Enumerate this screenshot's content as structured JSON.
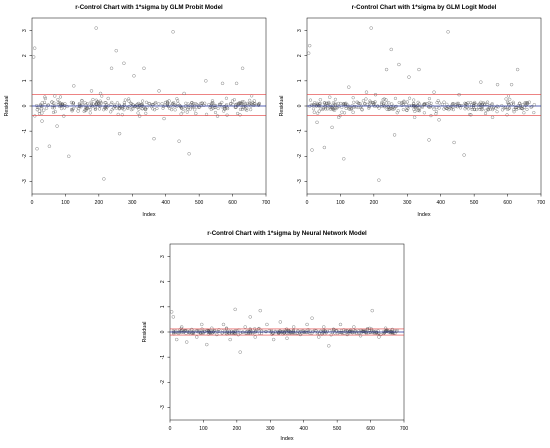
{
  "chart_data": [
    {
      "type": "scatter",
      "title": "r-Control Chart with 1*sigma by GLM Probit Model",
      "xlabel": "Index",
      "ylabel": "Residual",
      "xlim": [
        0,
        700
      ],
      "ylim": [
        -3.5,
        3.5
      ],
      "xticks": [
        "0",
        "100",
        "200",
        "300",
        "400",
        "500",
        "600",
        "700"
      ],
      "yticks": [
        "-3",
        "-2",
        "-1",
        "0",
        "1",
        "2",
        "3"
      ],
      "center_line": 0,
      "control_limits": [
        0.45,
        -0.38
      ],
      "points": [
        [
          5,
          1.95
        ],
        [
          8,
          2.3
        ],
        [
          15,
          -1.7
        ],
        [
          22,
          -0.2
        ],
        [
          30,
          -0.6
        ],
        [
          40,
          0.3
        ],
        [
          52,
          -1.6
        ],
        [
          60,
          0.15
        ],
        [
          68,
          0.4
        ],
        [
          75,
          -0.8
        ],
        [
          85,
          0.1
        ],
        [
          95,
          -0.4
        ],
        [
          110,
          -2.0
        ],
        [
          125,
          0.8
        ],
        [
          138,
          -0.2
        ],
        [
          150,
          0.2
        ],
        [
          165,
          -0.1
        ],
        [
          178,
          0.6
        ],
        [
          192,
          3.1
        ],
        [
          205,
          0.5
        ],
        [
          215,
          -2.9
        ],
        [
          228,
          0.3
        ],
        [
          238,
          1.5
        ],
        [
          252,
          2.2
        ],
        [
          262,
          -1.1
        ],
        [
          275,
          1.7
        ],
        [
          290,
          0.2
        ],
        [
          305,
          1.2
        ],
        [
          322,
          -0.4
        ],
        [
          335,
          1.5
        ],
        [
          350,
          0.1
        ],
        [
          365,
          -1.3
        ],
        [
          380,
          0.6
        ],
        [
          395,
          -0.5
        ],
        [
          410,
          0.2
        ],
        [
          422,
          2.95
        ],
        [
          440,
          -1.4
        ],
        [
          455,
          0.5
        ],
        [
          470,
          -1.9
        ],
        [
          490,
          -0.3
        ],
        [
          505,
          0.1
        ],
        [
          520,
          1.0
        ],
        [
          540,
          0.2
        ],
        [
          555,
          -0.4
        ],
        [
          570,
          0.9
        ],
        [
          585,
          -0.1
        ],
        [
          600,
          0.2
        ],
        [
          612,
          0.9
        ],
        [
          630,
          1.5
        ],
        [
          645,
          0.1
        ],
        [
          665,
          0.2
        ],
        [
          680,
          0.1
        ]
      ],
      "dense_band": [
        -0.15,
        0.15
      ]
    },
    {
      "type": "scatter",
      "title": "r-Control Chart with 1*sigma by GLM Logit Model",
      "xlabel": "Index",
      "ylabel": "Residual",
      "xlim": [
        0,
        700
      ],
      "ylim": [
        -3.5,
        3.5
      ],
      "xticks": [
        "0",
        "100",
        "200",
        "300",
        "400",
        "500",
        "600",
        "700"
      ],
      "yticks": [
        "-3",
        "-2",
        "-1",
        "0",
        "1",
        "2",
        "3"
      ],
      "center_line": 0,
      "control_limits": [
        0.45,
        -0.38
      ],
      "points": [
        [
          5,
          2.1
        ],
        [
          8,
          2.4
        ],
        [
          15,
          -1.75
        ],
        [
          22,
          -0.25
        ],
        [
          30,
          -0.65
        ],
        [
          40,
          0.25
        ],
        [
          52,
          -1.65
        ],
        [
          60,
          0.1
        ],
        [
          68,
          0.35
        ],
        [
          75,
          -0.85
        ],
        [
          85,
          0.05
        ],
        [
          95,
          -0.45
        ],
        [
          110,
          -2.1
        ],
        [
          125,
          0.75
        ],
        [
          138,
          -0.25
        ],
        [
          150,
          0.15
        ],
        [
          165,
          -0.15
        ],
        [
          178,
          0.55
        ],
        [
          192,
          3.1
        ],
        [
          205,
          0.45
        ],
        [
          215,
          -2.95
        ],
        [
          228,
          0.25
        ],
        [
          238,
          1.45
        ],
        [
          252,
          2.25
        ],
        [
          262,
          -1.15
        ],
        [
          275,
          1.65
        ],
        [
          290,
          0.15
        ],
        [
          305,
          1.15
        ],
        [
          322,
          -0.45
        ],
        [
          335,
          1.45
        ],
        [
          350,
          0.05
        ],
        [
          365,
          -1.35
        ],
        [
          380,
          0.55
        ],
        [
          395,
          -0.55
        ],
        [
          410,
          0.15
        ],
        [
          422,
          2.95
        ],
        [
          440,
          -1.45
        ],
        [
          455,
          0.45
        ],
        [
          470,
          -1.95
        ],
        [
          490,
          -0.35
        ],
        [
          505,
          0.05
        ],
        [
          520,
          0.95
        ],
        [
          540,
          0.15
        ],
        [
          555,
          -0.45
        ],
        [
          570,
          0.85
        ],
        [
          585,
          -0.15
        ],
        [
          600,
          0.15
        ],
        [
          612,
          0.85
        ],
        [
          630,
          1.45
        ],
        [
          645,
          0.05
        ],
        [
          665,
          0.15
        ],
        [
          680,
          0.05
        ]
      ],
      "dense_band": [
        -0.15,
        0.15
      ]
    },
    {
      "type": "scatter",
      "title": "r-Control Chart with 1*sigma by Neural Network Model",
      "xlabel": "Index",
      "ylabel": "Residual",
      "xlim": [
        0,
        700
      ],
      "ylim": [
        -3.5,
        3.5
      ],
      "xticks": [
        "0",
        "100",
        "200",
        "300",
        "400",
        "500",
        "600",
        "700"
      ],
      "yticks": [
        "-3",
        "-2",
        "-1",
        "0",
        "1",
        "2",
        "3"
      ],
      "center_line": 0,
      "control_limits": [
        0.12,
        -0.12
      ],
      "points": [
        [
          5,
          0.8
        ],
        [
          10,
          0.6
        ],
        [
          20,
          -0.3
        ],
        [
          35,
          0.2
        ],
        [
          50,
          -0.4
        ],
        [
          65,
          0.1
        ],
        [
          80,
          -0.2
        ],
        [
          95,
          0.3
        ],
        [
          110,
          -0.5
        ],
        [
          125,
          0.15
        ],
        [
          140,
          -0.1
        ],
        [
          160,
          0.3
        ],
        [
          180,
          -0.3
        ],
        [
          195,
          0.9
        ],
        [
          210,
          -0.8
        ],
        [
          225,
          0.2
        ],
        [
          240,
          0.6
        ],
        [
          255,
          -0.2
        ],
        [
          270,
          0.85
        ],
        [
          290,
          0.3
        ],
        [
          310,
          -0.3
        ],
        [
          330,
          0.4
        ],
        [
          350,
          -0.25
        ],
        [
          370,
          0.2
        ],
        [
          390,
          -0.1
        ],
        [
          410,
          0.3
        ],
        [
          425,
          0.55
        ],
        [
          445,
          -0.2
        ],
        [
          460,
          0.2
        ],
        [
          475,
          -0.55
        ],
        [
          490,
          0.1
        ],
        [
          510,
          0.3
        ],
        [
          530,
          -0.1
        ],
        [
          550,
          0.2
        ],
        [
          570,
          -0.15
        ],
        [
          590,
          0.1
        ],
        [
          605,
          0.85
        ],
        [
          625,
          -0.2
        ],
        [
          645,
          0.15
        ],
        [
          665,
          0.1
        ],
        [
          680,
          0.05
        ]
      ],
      "dense_band": [
        -0.06,
        0.06
      ]
    }
  ]
}
